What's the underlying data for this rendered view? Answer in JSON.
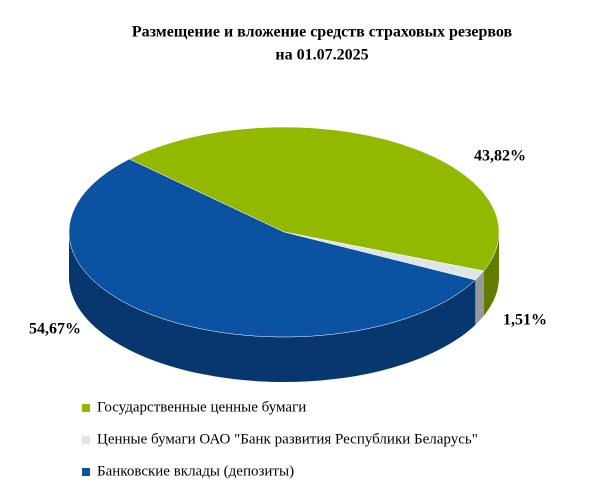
{
  "chart_data": {
    "type": "pie",
    "title": [
      "Размещение и вложение средств страховых резервов",
      "на 01.07.2025"
    ],
    "categories": [
      "Государственные ценные бумаги",
      "Ценные бумаги ОАО \"Банк развития Республики Беларусь\"",
      "Банковские вклады (депозиты)"
    ],
    "values": [
      43.82,
      1.51,
      54.67
    ],
    "value_labels": [
      "43,82%",
      "1,51%",
      "54,67%"
    ],
    "colors": [
      "#93b800",
      "#dfe4e8",
      "#0b52a3"
    ],
    "legend": "bottom-left"
  }
}
